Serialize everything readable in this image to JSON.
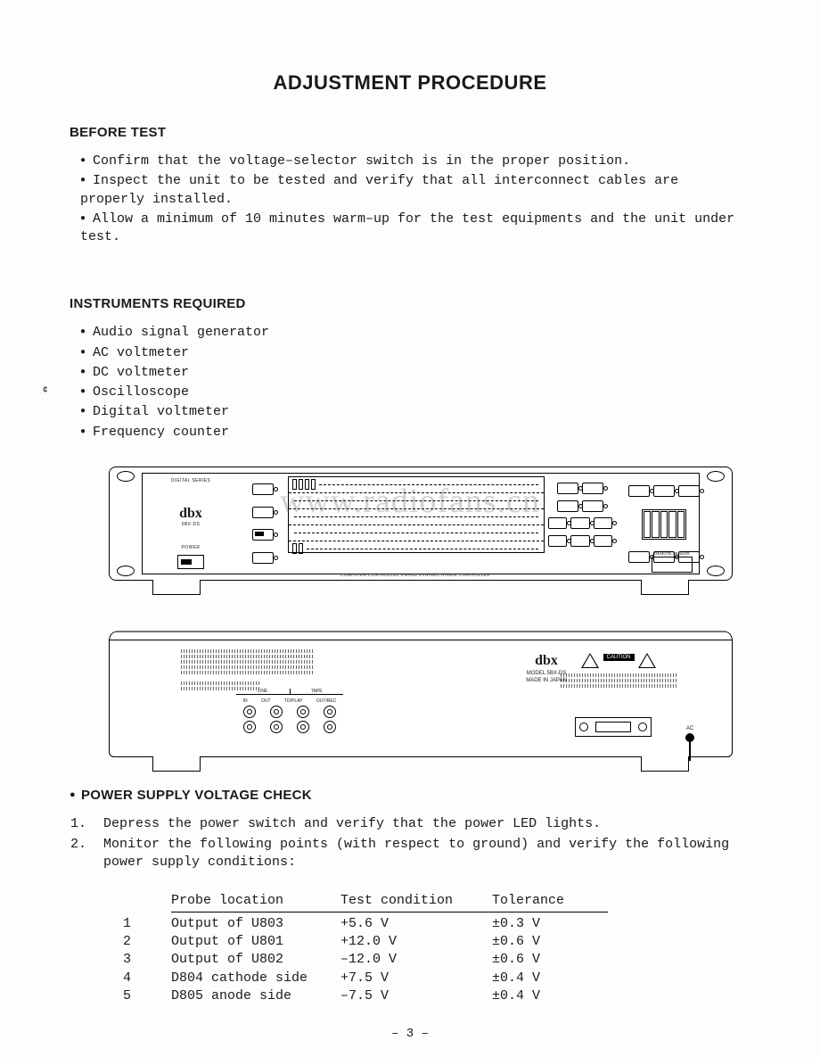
{
  "page": {
    "title": "ADJUSTMENT PROCEDURE",
    "number": "– 3 –",
    "watermark": "www.radiofans.cn"
  },
  "before_test": {
    "heading": "BEFORE TEST",
    "items": [
      "Confirm that the voltage–selector switch is in the proper position.",
      "Inspect the unit to be tested and verify that all interconnect cables are properly installed.",
      "Allow a minimum of 10 minutes warm–up for the test equipments and the unit under test."
    ]
  },
  "instruments": {
    "heading": "INSTRUMENTS REQUIRED",
    "items": [
      "Audio signal generator",
      "AC voltmeter",
      "DC voltmeter",
      "Oscilloscope",
      "Digital voltmeter",
      "Frequency counter"
    ]
  },
  "front_panel": {
    "series": "DIGITAL SERIES",
    "brand": "dbx",
    "model": "5BX-DS",
    "power": "POWER",
    "caption": "COMPUTER-CONTROLLED 5-BAND DYNAMIC RANGE CONTROLLER",
    "remote": "REMOTE SENSOR"
  },
  "rear_panel": {
    "brand": "dbx",
    "model": "MODEL 5BX-DS",
    "origin": "MADE IN JAPAN",
    "line": "LINE",
    "tape": "TAPE",
    "in": "IN",
    "out": "OUT",
    "toplay": "TO/PLAY",
    "outrec": "OUT/REC",
    "caution": "CAUTION",
    "ac": "AC"
  },
  "power_supply": {
    "heading": "POWER SUPPLY VOLTAGE CHECK",
    "steps": [
      "Depress the power switch and verify that the power LED lights.",
      "Monitor the following points (with respect to ground) and verify the following power supply conditions:"
    ],
    "table": {
      "headers": {
        "a": "Probe location",
        "b": "Test condition",
        "c": "Tolerance"
      },
      "rows": [
        {
          "n": "1",
          "a": "Output of U803",
          "b": "+5.6 V",
          "c": "±0.3 V"
        },
        {
          "n": "2",
          "a": "Output of U801",
          "b": "+12.0 V",
          "c": "±0.6 V"
        },
        {
          "n": "3",
          "a": "Output of U802",
          "b": "–12.0 V",
          "c": "±0.6 V"
        },
        {
          "n": "4",
          "a": "D804 cathode side",
          "b": "+7.5 V",
          "c": "±0.4 V"
        },
        {
          "n": "5",
          "a": "D805 anode side",
          "b": "–7.5 V",
          "c": "±0.4 V"
        }
      ]
    }
  }
}
